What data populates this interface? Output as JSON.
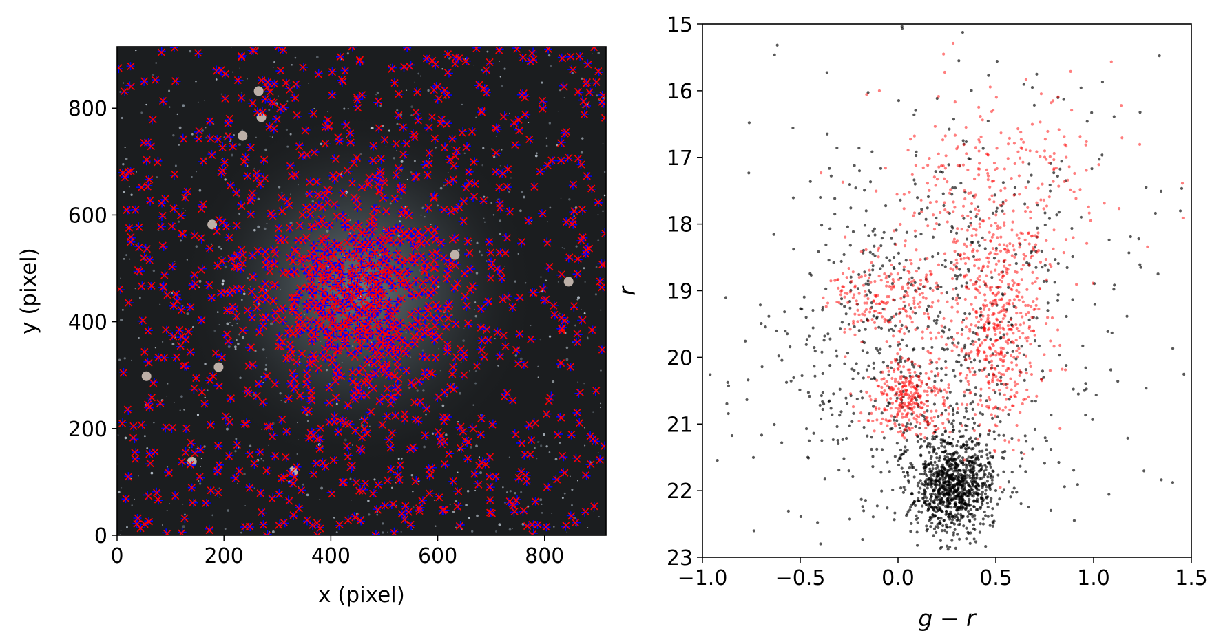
{
  "colors": {
    "image_bg": "#1b1d1f",
    "marker_red": "#ff0000",
    "marker_blue": "#0000ff",
    "marker_black": "#000000"
  },
  "chart_data": [
    {
      "type": "scatter",
      "panel": "left",
      "description_of_background": "RGB sky image of a star cluster field",
      "xlabel": "x (pixel)",
      "ylabel": "y (pixel)",
      "xlim": [
        0,
        915
      ],
      "ylim": [
        0,
        915
      ],
      "xticks": [
        0,
        200,
        400,
        600,
        800
      ],
      "yticks": [
        0,
        200,
        400,
        600,
        800
      ],
      "grid": false,
      "series": [
        {
          "marker": "+",
          "color": "#0000ff"
        },
        {
          "marker": "x",
          "color": "#ff0000"
        }
      ],
      "distribution": {
        "center": [
          450,
          450
        ],
        "dense_core_radius": 170,
        "approx_points_per_series": 1500
      }
    },
    {
      "type": "scatter",
      "panel": "right",
      "xlabel": "g − r",
      "ylabel": "r",
      "xlim": [
        -1.0,
        1.5
      ],
      "ylim": [
        23,
        15
      ],
      "y_inverted": true,
      "xticks": [
        "−1.0",
        "−0.5",
        "0.0",
        "0.5",
        "1.0",
        "1.5"
      ],
      "yticks": [
        "15",
        "16",
        "17",
        "18",
        "19",
        "20",
        "21",
        "22",
        "23"
      ],
      "grid": false,
      "series": [
        {
          "color": "#000000",
          "approx_points": 1900,
          "components": [
            {
              "n": 1000,
              "gr_mean": 0.28,
              "gr_sd": 0.1,
              "r_mean": 21.9,
              "r_sd": 0.35
            },
            {
              "n": 500,
              "gr_mean": 0.15,
              "gr_sd": 0.35,
              "r_mean": 20.2,
              "r_sd": 1.5
            },
            {
              "n": 300,
              "gr_mean": 0.4,
              "gr_sd": 0.5,
              "r_mean": 19.0,
              "r_sd": 2.0
            },
            {
              "n": 100,
              "gr_mean": -0.2,
              "gr_sd": 0.4,
              "r_mean": 20.0,
              "r_sd": 1.0
            }
          ]
        },
        {
          "color": "#ff0000",
          "approx_points": 1300,
          "components": [
            {
              "n": 500,
              "gr_mean": 0.5,
              "gr_sd": 0.12,
              "r_mean": 19.6,
              "r_sd": 0.8
            },
            {
              "n": 300,
              "gr_mean": 0.05,
              "gr_sd": 0.1,
              "r_mean": 20.6,
              "r_sd": 0.3
            },
            {
              "n": 200,
              "gr_mean": -0.05,
              "gr_sd": 0.15,
              "r_mean": 19.1,
              "r_sd": 0.35
            },
            {
              "n": 300,
              "gr_mean": 0.5,
              "gr_sd": 0.3,
              "r_mean": 17.5,
              "r_sd": 0.8
            }
          ]
        }
      ]
    }
  ]
}
